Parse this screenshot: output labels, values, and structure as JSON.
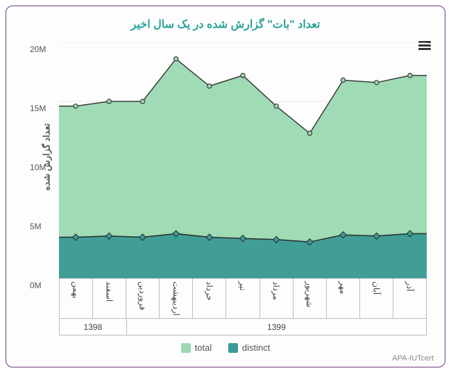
{
  "chart": {
    "type": "area",
    "title": "تعداد \"بات\" گزارش شده در یک سال اخیر",
    "yaxis_title": "تعداد گزارش شده",
    "credit": "APA-IUTcert",
    "background_color": "#fdfdfd",
    "border_color": "#6b3a7a",
    "grid_color": "#e6e6e6",
    "ylim": [
      0,
      20
    ],
    "yticks": [
      0,
      5,
      10,
      15,
      20
    ],
    "ytick_labels": [
      "0M",
      "5M",
      "10M",
      "15M",
      "20M"
    ],
    "categories": [
      "بهمن",
      "اسفند",
      "فروردین",
      "اردیبهشت",
      "خرداد",
      "تیر",
      "مرداد",
      "شهریور",
      "مهر",
      "آبان",
      "آذر"
    ],
    "year_groups": [
      {
        "label": "1398",
        "span": 2
      },
      {
        "label": "1399",
        "span": 9
      }
    ],
    "series": [
      {
        "name": "total",
        "values": [
          14.6,
          15.0,
          15.0,
          18.6,
          16.3,
          17.2,
          14.6,
          12.3,
          16.8,
          16.6,
          17.2
        ],
        "fill_color": "#9ad9b1",
        "line_color": "#3a3a3a",
        "marker": "circle",
        "marker_size": 5
      },
      {
        "name": "distinct",
        "values": [
          3.5,
          3.6,
          3.5,
          3.8,
          3.5,
          3.4,
          3.3,
          3.1,
          3.7,
          3.6,
          3.8
        ],
        "fill_color": "#3b9b96",
        "line_color": "#2a2a2a",
        "marker": "diamond",
        "marker_size": 6
      }
    ],
    "legend": {
      "items": [
        {
          "label": "total",
          "color": "#9ad9b1"
        },
        {
          "label": "distinct",
          "color": "#3b9b96"
        }
      ]
    }
  }
}
